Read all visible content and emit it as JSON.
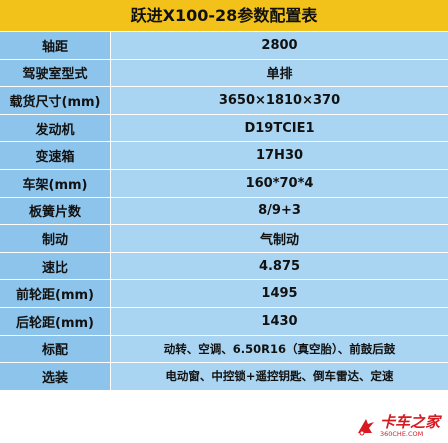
{
  "title": "跃进X100-28参数配置表",
  "rows": [
    {
      "key": "轴距",
      "value": "2800"
    },
    {
      "key": "驾驶室型式",
      "value": "单排"
    },
    {
      "key": "载货尺寸(mm)",
      "value": "3650×1810×370"
    },
    {
      "key": "发动机",
      "value": "D19TCIE1"
    },
    {
      "key": "变速箱",
      "value": "17H30"
    },
    {
      "key": "车架(mm)",
      "value": "160*70*4"
    },
    {
      "key": "板簧片数",
      "value": "8/9+3"
    },
    {
      "key": "制动",
      "value": "气制动"
    },
    {
      "key": "速比",
      "value": "4.875"
    },
    {
      "key": "前轮距(mm)",
      "value": "1495"
    },
    {
      "key": "后轮距(mm)",
      "value": "1430"
    },
    {
      "key": "标配",
      "value": "动转、空调、6.50R16（真空胎）、前鼓后鼓"
    },
    {
      "key": "选装",
      "value": "电动窗、中控锁+遥控钥匙、倒车雷达、定速"
    }
  ],
  "watermark": {
    "name": "卡车之家",
    "url": "360CHE.COM",
    "icon": "truck-logo-icon"
  },
  "colors": {
    "title_bg": "#f2c21a",
    "key_bg": "#8dc4ec",
    "value_bg": "#a9d5f3",
    "brand": "#d71920"
  }
}
